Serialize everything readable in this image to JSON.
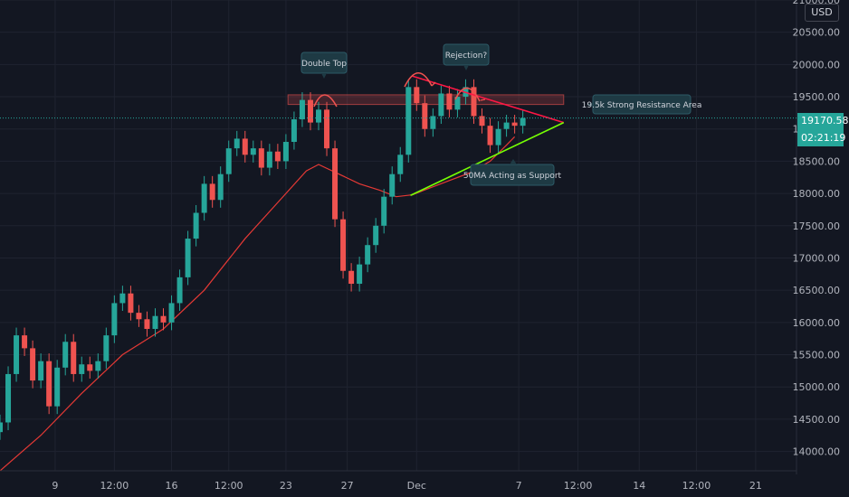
{
  "axis": {
    "currency": "USD",
    "price_labels": [
      "21000.00",
      "20500.00",
      "20000.00",
      "19500.00",
      "19000.00",
      "18500.00",
      "18000.00",
      "17500.00",
      "17000.00",
      "16500.00",
      "16000.00",
      "15500.00",
      "15000.00",
      "14500.00",
      "14000.00"
    ],
    "time_labels": [
      "9",
      "12:00",
      "16",
      "12:00",
      "23",
      "27",
      "Dec",
      "7",
      "12:00",
      "14",
      "12:00",
      "21"
    ]
  },
  "last_price": {
    "price": "19170.58",
    "countdown": "02:21:19",
    "color": "#26a69a"
  },
  "annotations": {
    "double_top": "Double Top",
    "rejection": "Rejection?",
    "resistance": "19.5k Strong Resistance Area",
    "support": "50MA Acting as Support"
  },
  "colors": {
    "background": "#131722",
    "up": "#26a69a",
    "down": "#ef5350",
    "ma": "#e53935",
    "resistance_line": "#ff1744",
    "support_line": "#76ff03"
  },
  "chart_data": {
    "type": "candlestick",
    "ylim": [
      13700,
      21000
    ],
    "xlim": [
      0,
      39
    ],
    "series_close": [
      [
        0.0,
        14450
      ],
      [
        0.4,
        15200
      ],
      [
        0.8,
        15800
      ],
      [
        1.2,
        15600
      ],
      [
        1.6,
        15100
      ],
      [
        2.0,
        15400
      ],
      [
        2.4,
        14700
      ],
      [
        2.8,
        15300
      ],
      [
        3.2,
        15700
      ],
      [
        3.6,
        15200
      ],
      [
        4.0,
        15350
      ],
      [
        4.4,
        15250
      ],
      [
        4.8,
        15400
      ],
      [
        5.2,
        15800
      ],
      [
        5.6,
        16300
      ],
      [
        6.0,
        16450
      ],
      [
        6.4,
        16150
      ],
      [
        6.8,
        16050
      ],
      [
        7.2,
        15900
      ],
      [
        7.6,
        16100
      ],
      [
        8.0,
        16000
      ],
      [
        8.4,
        16300
      ],
      [
        8.8,
        16700
      ],
      [
        9.2,
        17300
      ],
      [
        9.6,
        17700
      ],
      [
        10.0,
        18150
      ],
      [
        10.4,
        17900
      ],
      [
        10.8,
        18300
      ],
      [
        11.2,
        18700
      ],
      [
        11.6,
        18850
      ],
      [
        12.0,
        18600
      ],
      [
        12.4,
        18700
      ],
      [
        12.8,
        18400
      ],
      [
        13.2,
        18650
      ],
      [
        13.6,
        18500
      ],
      [
        14.0,
        18800
      ],
      [
        14.4,
        19150
      ],
      [
        14.8,
        19450
      ],
      [
        15.2,
        19100
      ],
      [
        15.6,
        19300
      ],
      [
        16.0,
        18700
      ],
      [
        16.4,
        17600
      ],
      [
        16.8,
        16800
      ],
      [
        17.2,
        16600
      ],
      [
        17.6,
        16900
      ],
      [
        18.0,
        17200
      ],
      [
        18.4,
        17500
      ],
      [
        18.8,
        17950
      ],
      [
        19.2,
        18300
      ],
      [
        19.6,
        18600
      ],
      [
        20.0,
        19650
      ],
      [
        20.4,
        19400
      ],
      [
        20.8,
        19000
      ],
      [
        21.2,
        19200
      ],
      [
        21.6,
        19550
      ],
      [
        22.0,
        19300
      ],
      [
        22.4,
        19500
      ],
      [
        22.8,
        19650
      ],
      [
        23.2,
        19200
      ],
      [
        23.6,
        19050
      ],
      [
        24.0,
        18750
      ],
      [
        24.4,
        19000
      ],
      [
        24.8,
        19100
      ],
      [
        25.2,
        19050
      ],
      [
        25.6,
        19170
      ]
    ],
    "ma50": [
      [
        0.0,
        13700
      ],
      [
        2.0,
        14250
      ],
      [
        4.0,
        14900
      ],
      [
        6.0,
        15500
      ],
      [
        8.0,
        15900
      ],
      [
        10.0,
        16500
      ],
      [
        12.0,
        17300
      ],
      [
        14.0,
        18000
      ],
      [
        15.0,
        18350
      ],
      [
        15.6,
        18450
      ],
      [
        16.6,
        18300
      ],
      [
        17.6,
        18150
      ],
      [
        18.6,
        18050
      ],
      [
        19.4,
        17950
      ],
      [
        20.2,
        17980
      ],
      [
        21.0,
        18080
      ],
      [
        22.0,
        18200
      ],
      [
        23.0,
        18320
      ],
      [
        24.0,
        18500
      ],
      [
        24.8,
        18750
      ],
      [
        25.2,
        18880
      ]
    ],
    "resistance_zone": [
      19380,
      19530
    ],
    "resistance_zone_x": [
      14.1,
      27.6
    ],
    "triangle_upper": [
      [
        20.2,
        19820
      ],
      [
        27.6,
        19100
      ]
    ],
    "triangle_lower": [
      [
        20.1,
        17970
      ],
      [
        27.6,
        19100
      ]
    ],
    "price_ticks": [
      21000,
      20500,
      20000,
      19500,
      19000,
      18500,
      18000,
      17500,
      17000,
      16500,
      16000,
      15500,
      15000,
      14500,
      14000
    ],
    "time_ticks": [
      2.7,
      5.6,
      8.4,
      11.2,
      14.0,
      17.0,
      20.4,
      25.4,
      28.3,
      31.3,
      34.1,
      37.0
    ]
  }
}
